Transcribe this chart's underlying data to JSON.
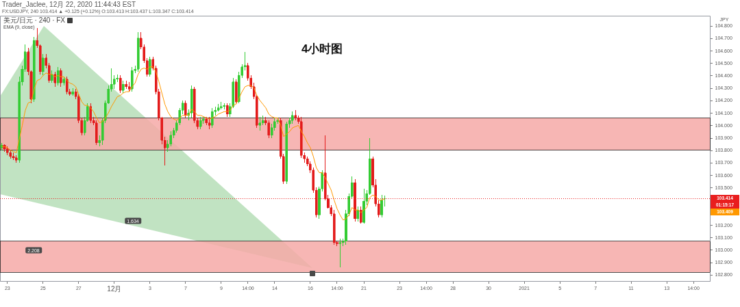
{
  "chart_data": {
    "type": "candlestick",
    "title": "4小时图",
    "ylabel": "JPY",
    "categories": [
      null,
      null,
      "23",
      null,
      null,
      null,
      null,
      null,
      null,
      null,
      null,
      null,
      null,
      null,
      "25",
      null,
      null,
      null,
      null,
      null,
      null,
      null,
      null,
      null,
      null,
      null,
      "27",
      null,
      null,
      null,
      null,
      null,
      null,
      null,
      null,
      null,
      null,
      null,
      "12月",
      null,
      null,
      null,
      null,
      null,
      null,
      null,
      null,
      null,
      null,
      null,
      "3",
      null,
      null,
      null,
      null,
      null,
      null,
      null,
      null,
      null,
      null,
      null,
      "7",
      null,
      null,
      null,
      null,
      null,
      null,
      null,
      null,
      null,
      null,
      null,
      "9",
      null,
      null,
      null,
      null,
      null,
      null,
      null,
      null,
      "14:00",
      null,
      null,
      null,
      null,
      null,
      null,
      null,
      null,
      "14",
      null,
      null,
      null,
      null,
      null,
      null,
      null,
      null,
      null,
      null,
      null,
      "16",
      null,
      null,
      null,
      null,
      null,
      null,
      null,
      null,
      "14:00",
      null,
      null,
      null,
      null,
      null,
      null,
      null,
      null,
      "21",
      null,
      null,
      null,
      null,
      null,
      null,
      null,
      null,
      null,
      null,
      null,
      "23",
      null,
      null,
      null,
      null,
      null,
      null,
      null,
      null,
      "14:00",
      null,
      null,
      null,
      null,
      null,
      null,
      null,
      null,
      "28",
      null,
      null,
      null,
      null,
      null,
      null,
      null,
      null,
      null,
      null,
      null,
      "30",
      null,
      null,
      null,
      null,
      null,
      null,
      null,
      null,
      null,
      null,
      null,
      "2021",
      null,
      null,
      null,
      null,
      null,
      null,
      null,
      null,
      null,
      null,
      null,
      "5",
      null,
      null,
      null,
      null,
      null,
      null,
      null,
      null,
      null,
      null,
      null,
      "7",
      null,
      null,
      null,
      null,
      null,
      null,
      null,
      null,
      null,
      null,
      null,
      "11",
      null,
      null,
      null,
      null,
      null,
      null,
      null,
      null,
      null,
      null,
      null,
      "13",
      null,
      null,
      null,
      null,
      null,
      null,
      null,
      null,
      "14:00",
      null,
      null,
      null,
      null,
      null
    ],
    "ohlc": [
      [
        103.82,
        103.86,
        103.8,
        103.84
      ],
      [
        103.84,
        103.85,
        103.79,
        103.81
      ],
      [
        103.81,
        103.83,
        103.76,
        103.78
      ],
      [
        103.78,
        103.8,
        103.73,
        103.75
      ],
      [
        103.75,
        103.78,
        103.72,
        103.74
      ],
      [
        103.74,
        103.76,
        103.7,
        103.72
      ],
      [
        103.72,
        104.39,
        103.7,
        104.35
      ],
      [
        104.35,
        104.48,
        104.32,
        104.45
      ],
      [
        104.45,
        104.65,
        104.43,
        104.59
      ],
      [
        104.59,
        104.62,
        104.4,
        104.43
      ],
      [
        104.43,
        104.44,
        104.18,
        104.21
      ],
      [
        104.21,
        104.71,
        104.19,
        104.68
      ],
      [
        104.68,
        104.78,
        104.62,
        104.64
      ],
      [
        104.64,
        104.65,
        104.41,
        104.43
      ],
      [
        104.43,
        104.57,
        104.4,
        104.54
      ],
      [
        104.54,
        104.57,
        104.46,
        104.48
      ],
      [
        104.48,
        104.5,
        104.34,
        104.36
      ],
      [
        104.36,
        104.44,
        104.34,
        104.41
      ],
      [
        104.41,
        104.43,
        104.31,
        104.34
      ],
      [
        104.34,
        104.47,
        104.32,
        104.44
      ],
      [
        104.44,
        104.46,
        104.31,
        104.34
      ],
      [
        104.34,
        104.39,
        104.32,
        104.37
      ],
      [
        104.37,
        104.39,
        104.25,
        104.27
      ],
      [
        104.27,
        104.29,
        104.24,
        104.25
      ],
      [
        104.25,
        104.3,
        104.24,
        104.27
      ],
      [
        104.27,
        104.29,
        104.21,
        104.23
      ],
      [
        104.23,
        104.25,
        104.02,
        104.04
      ],
      [
        104.04,
        104.06,
        103.92,
        103.94
      ],
      [
        103.94,
        104.07,
        103.92,
        104.04
      ],
      [
        104.04,
        104.18,
        104.03,
        104.15
      ],
      [
        104.15,
        104.18,
        104.02,
        104.04
      ],
      [
        104.04,
        104.07,
        104.0,
        104.02
      ],
      [
        104.02,
        104.04,
        103.84,
        103.86
      ],
      [
        103.86,
        103.92,
        103.83,
        103.88
      ],
      [
        103.88,
        104.06,
        103.84,
        104.04
      ],
      [
        104.04,
        104.2,
        104.02,
        104.18
      ],
      [
        104.18,
        104.32,
        104.17,
        104.29
      ],
      [
        104.29,
        104.46,
        104.27,
        104.33
      ],
      [
        104.33,
        104.4,
        104.29,
        104.37
      ],
      [
        104.37,
        104.41,
        104.35,
        104.38
      ],
      [
        104.38,
        104.4,
        104.26,
        104.28
      ],
      [
        104.28,
        104.36,
        104.26,
        104.33
      ],
      [
        104.33,
        104.36,
        104.29,
        104.31
      ],
      [
        104.31,
        104.35,
        104.27,
        104.29
      ],
      [
        104.29,
        104.47,
        104.27,
        104.44
      ],
      [
        104.44,
        104.48,
        104.42,
        104.45
      ],
      [
        104.45,
        104.75,
        104.43,
        104.7
      ],
      [
        104.7,
        104.75,
        104.61,
        104.63
      ],
      [
        104.63,
        104.65,
        104.5,
        104.52
      ],
      [
        104.52,
        104.54,
        104.39,
        104.41
      ],
      [
        104.41,
        104.55,
        104.39,
        104.53
      ],
      [
        104.53,
        104.55,
        104.44,
        104.46
      ],
      [
        104.46,
        104.48,
        104.25,
        104.27
      ],
      [
        104.27,
        104.29,
        104.04,
        104.06
      ],
      [
        104.06,
        104.07,
        103.85,
        103.88
      ],
      [
        103.88,
        103.91,
        103.68,
        103.82
      ],
      [
        103.82,
        103.88,
        103.79,
        103.85
      ],
      [
        103.85,
        103.95,
        103.83,
        103.92
      ],
      [
        103.92,
        103.98,
        103.9,
        103.96
      ],
      [
        103.96,
        104.04,
        103.94,
        104.02
      ],
      [
        104.02,
        104.14,
        104.0,
        104.12
      ],
      [
        104.12,
        104.2,
        104.09,
        104.18
      ],
      [
        104.18,
        104.2,
        104.06,
        104.08
      ],
      [
        104.08,
        104.13,
        104.04,
        104.1
      ],
      [
        104.1,
        104.32,
        104.06,
        104.29
      ],
      [
        104.29,
        104.31,
        104.02,
        104.04
      ],
      [
        104.04,
        104.06,
        103.97,
        103.99
      ],
      [
        103.99,
        104.07,
        103.97,
        104.04
      ],
      [
        104.04,
        104.07,
        104.01,
        104.05
      ],
      [
        104.05,
        104.07,
        104.0,
        104.02
      ],
      [
        104.02,
        104.07,
        103.97,
        104.0
      ],
      [
        104.0,
        104.14,
        103.98,
        104.11
      ],
      [
        104.11,
        104.15,
        104.08,
        104.12
      ],
      [
        104.12,
        104.17,
        104.11,
        104.14
      ],
      [
        104.14,
        104.19,
        104.13,
        104.15
      ],
      [
        104.15,
        104.18,
        104.13,
        104.16
      ],
      [
        104.16,
        104.18,
        104.07,
        104.09
      ],
      [
        104.09,
        104.18,
        104.07,
        104.15
      ],
      [
        104.15,
        104.38,
        104.14,
        104.35
      ],
      [
        104.35,
        104.37,
        104.18,
        104.19
      ],
      [
        104.19,
        104.43,
        104.18,
        104.4
      ],
      [
        104.4,
        104.49,
        104.38,
        104.47
      ],
      [
        104.47,
        104.59,
        104.44,
        104.48
      ],
      [
        104.48,
        104.5,
        104.36,
        104.38
      ],
      [
        104.38,
        104.4,
        104.29,
        104.31
      ],
      [
        104.31,
        104.34,
        104.21,
        104.23
      ],
      [
        104.23,
        104.25,
        103.98,
        104.0
      ],
      [
        104.0,
        104.07,
        103.96,
        104.02
      ],
      [
        104.02,
        104.08,
        104.0,
        104.04
      ],
      [
        104.04,
        104.07,
        104.0,
        104.02
      ],
      [
        104.02,
        104.04,
        103.9,
        103.92
      ],
      [
        103.92,
        104.01,
        103.9,
        103.98
      ],
      [
        103.98,
        104.06,
        103.96,
        104.03
      ],
      [
        104.03,
        104.06,
        104.01,
        104.04
      ],
      [
        104.04,
        104.06,
        103.73,
        103.75
      ],
      [
        103.75,
        103.77,
        103.53,
        103.55
      ],
      [
        103.55,
        104.03,
        103.53,
        104.01
      ],
      [
        104.01,
        104.06,
        103.98,
        104.04
      ],
      [
        104.04,
        104.11,
        104.01,
        104.08
      ],
      [
        104.08,
        104.12,
        104.04,
        104.06
      ],
      [
        104.06,
        104.08,
        104.01,
        104.03
      ],
      [
        104.03,
        104.07,
        103.74,
        103.76
      ],
      [
        103.76,
        103.78,
        103.7,
        103.73
      ],
      [
        103.73,
        103.75,
        103.67,
        103.69
      ],
      [
        103.69,
        103.71,
        103.62,
        103.64
      ],
      [
        103.64,
        103.66,
        103.46,
        103.48
      ],
      [
        103.48,
        103.5,
        103.26,
        103.28
      ],
      [
        103.28,
        103.51,
        103.25,
        103.49
      ],
      [
        103.49,
        103.64,
        103.47,
        103.62
      ],
      [
        103.62,
        103.92,
        103.4,
        103.41
      ],
      [
        103.41,
        103.44,
        103.33,
        103.34
      ],
      [
        103.34,
        103.36,
        103.27,
        103.29
      ],
      [
        103.29,
        103.32,
        103.04,
        103.06
      ],
      [
        103.06,
        103.07,
        103.03,
        103.05
      ],
      [
        103.05,
        103.09,
        102.86,
        103.06
      ],
      [
        103.06,
        103.09,
        103.03,
        103.07
      ],
      [
        103.07,
        103.32,
        103.04,
        103.29
      ],
      [
        103.29,
        103.45,
        103.27,
        103.43
      ],
      [
        103.43,
        103.59,
        103.41,
        103.54
      ],
      [
        103.54,
        103.57,
        103.23,
        103.25
      ],
      [
        103.25,
        103.35,
        103.23,
        103.32
      ],
      [
        103.32,
        103.35,
        103.21,
        103.22
      ],
      [
        103.22,
        103.49,
        103.21,
        103.39
      ],
      [
        103.39,
        103.48,
        103.36,
        103.45
      ],
      [
        103.45,
        103.9,
        103.44,
        103.73
      ],
      [
        103.73,
        103.75,
        103.5,
        103.52
      ],
      [
        103.52,
        103.57,
        103.35,
        103.37
      ],
      [
        103.37,
        103.4,
        103.26,
        103.28
      ],
      [
        103.28,
        103.44,
        103.26,
        103.4
      ],
      [
        103.413,
        103.437,
        103.347,
        103.414
      ],
      null,
      null,
      null,
      null,
      null,
      null,
      null,
      null,
      null,
      null,
      null,
      null,
      null,
      null,
      null,
      null,
      null,
      null,
      null,
      null,
      null,
      null,
      null,
      null,
      null,
      null,
      null,
      null,
      null,
      null,
      null,
      null,
      null,
      null,
      null,
      null,
      null,
      null,
      null,
      null,
      null,
      null,
      null,
      null,
      null,
      null,
      null,
      null,
      null,
      null,
      null,
      null,
      null,
      null,
      null,
      null,
      null,
      null,
      null,
      null,
      null,
      null,
      null,
      null,
      null,
      null,
      null,
      null,
      null,
      null,
      null,
      null,
      null,
      null,
      null,
      null,
      null,
      null,
      null,
      null,
      null,
      null,
      null,
      null,
      null,
      null,
      null,
      null,
      null,
      null,
      null,
      null,
      null,
      null,
      null,
      null,
      null,
      null,
      null,
      null,
      null,
      null,
      null,
      null,
      null,
      null,
      null,
      null,
      null
    ],
    "colors": [
      "#33cc33",
      "#e31b1b",
      "#e31b1b",
      "#e31b1b",
      "#e31b1b",
      "#e31b1b",
      "#33cc33",
      "#33cc33",
      "#33cc33",
      "#e31b1b",
      "#e31b1b",
      "#33cc33",
      "#e31b1b",
      "#e31b1b",
      "#33cc33",
      "#e31b1b",
      "#e31b1b",
      "#33cc33",
      "#e31b1b",
      "#33cc33",
      "#e31b1b",
      "#33cc33",
      "#e31b1b",
      "#e31b1b",
      "#33cc33",
      "#e31b1b",
      "#e31b1b",
      "#e31b1b",
      "#33cc33",
      "#33cc33",
      "#e31b1b",
      "#e31b1b",
      "#e31b1b",
      "#33cc33",
      "#33cc33",
      "#33cc33",
      "#33cc33",
      "#33cc33",
      "#33cc33",
      "#33cc33",
      "#e31b1b",
      "#33cc33",
      "#e31b1b",
      "#e31b1b",
      "#33cc33",
      "#33cc33",
      "#33cc33",
      "#e31b1b",
      "#e31b1b",
      "#e31b1b",
      "#33cc33",
      "#e31b1b",
      "#e31b1b",
      "#e31b1b",
      "#e31b1b",
      "#e31b1b",
      "#33cc33",
      "#33cc33",
      "#33cc33",
      "#33cc33",
      "#33cc33",
      "#33cc33",
      "#e31b1b",
      "#33cc33",
      "#33cc33",
      "#e31b1b",
      "#e31b1b",
      "#33cc33",
      "#33cc33",
      "#e31b1b",
      "#e31b1b",
      "#33cc33",
      "#33cc33",
      "#33cc33",
      "#33cc33",
      "#33cc33",
      "#e31b1b",
      "#33cc33",
      "#33cc33",
      "#e31b1b",
      "#33cc33",
      "#33cc33",
      "#33cc33",
      "#e31b1b",
      "#e31b1b",
      "#e31b1b",
      "#e31b1b",
      "#33cc33",
      "#33cc33",
      "#e31b1b",
      "#e31b1b",
      "#33cc33",
      "#33cc33",
      "#33cc33",
      "#e31b1b",
      "#e31b1b",
      "#33cc33",
      "#33cc33",
      "#33cc33",
      "#e31b1b",
      "#e31b1b",
      "#e31b1b",
      "#e31b1b",
      "#e31b1b",
      "#e31b1b",
      "#e31b1b",
      "#e31b1b",
      "#33cc33",
      "#33cc33",
      "#e31b1b",
      "#e31b1b",
      "#e31b1b",
      "#e31b1b",
      "#e31b1b",
      "#33cc33",
      "#33cc33",
      "#33cc33",
      "#33cc33",
      "#33cc33",
      "#e31b1b",
      "#33cc33",
      "#e31b1b",
      "#33cc33",
      "#33cc33",
      "#33cc33",
      "#e31b1b",
      "#e31b1b",
      "#e31b1b",
      "#33cc33",
      "#33cc33",
      null,
      null,
      null,
      null,
      null,
      null,
      null,
      null,
      null,
      null,
      null,
      null,
      null,
      null,
      null,
      null,
      null,
      null,
      null,
      null,
      null,
      null,
      null,
      null,
      null,
      null,
      null,
      null,
      null,
      null,
      null,
      null,
      null,
      null,
      null,
      null,
      null,
      null,
      null,
      null,
      null,
      null,
      null,
      null,
      null,
      null,
      null,
      null,
      null,
      null,
      null,
      null,
      null,
      null,
      null,
      null,
      null,
      null,
      null,
      null,
      null,
      null,
      null,
      null,
      null,
      null,
      null,
      null,
      null,
      null,
      null,
      null,
      null,
      null,
      null,
      null,
      null,
      null,
      null,
      null,
      null,
      null,
      null,
      null,
      null,
      null,
      null,
      null,
      null,
      null,
      null,
      null,
      null,
      null,
      null,
      null,
      null,
      null,
      null,
      null,
      null,
      null,
      null,
      null,
      null,
      null,
      null,
      null,
      null
    ],
    "series": [
      {
        "type": "line",
        "color": "#ff9800",
        "values": [
          103.83,
          103.83,
          103.82,
          103.8,
          103.79,
          103.78,
          103.89,
          104.0,
          104.12,
          104.18,
          104.19,
          104.29,
          104.36,
          104.37,
          104.4,
          104.42,
          104.41,
          104.41,
          104.39,
          104.4,
          104.39,
          104.39,
          104.36,
          104.34,
          104.33,
          104.31,
          104.25,
          104.19,
          104.16,
          104.16,
          104.14,
          104.11,
          104.06,
          104.02,
          104.03,
          104.06,
          104.1,
          104.15,
          104.19,
          104.23,
          104.24,
          104.26,
          104.27,
          104.27,
          104.31,
          104.34,
          104.41,
          104.45,
          104.46,
          104.45,
          104.47,
          104.47,
          104.43,
          104.35,
          104.26,
          104.17,
          104.11,
          104.07,
          104.05,
          104.04,
          104.06,
          104.08,
          104.08,
          104.08,
          104.13,
          104.11,
          104.08,
          104.08,
          104.07,
          104.06,
          104.05,
          104.06,
          104.07,
          104.09,
          104.1,
          104.11,
          104.11,
          104.12,
          104.16,
          104.17,
          104.22,
          104.27,
          104.31,
          104.32,
          104.32,
          104.3,
          104.24,
          104.2,
          104.17,
          104.14,
          104.09,
          104.07,
          104.06,
          104.06,
          104.0,
          103.91,
          103.93,
          103.95,
          103.98,
          103.99,
          104.0,
          103.95,
          103.91,
          103.86,
          103.82,
          103.75,
          103.66,
          103.62,
          103.62,
          103.58,
          103.53,
          103.48,
          103.4,
          103.33,
          103.28,
          103.24,
          103.25,
          103.28,
          103.34,
          103.32,
          103.32,
          103.3,
          103.32,
          103.34,
          103.42,
          103.44,
          103.43,
          103.4,
          103.4,
          103.409,
          null,
          null,
          null,
          null,
          null,
          null,
          null,
          null,
          null,
          null,
          null,
          null,
          null,
          null,
          null,
          null,
          null,
          null,
          null,
          null,
          null,
          null,
          null,
          null,
          null,
          null,
          null,
          null,
          null,
          null,
          null,
          null,
          null,
          null,
          null,
          null,
          null,
          null,
          null,
          null,
          null,
          null,
          null,
          null,
          null,
          null,
          null,
          null,
          null,
          null,
          null,
          null,
          null,
          null,
          null,
          null,
          null,
          null,
          null,
          null,
          null,
          null,
          null,
          null,
          null,
          null,
          null,
          null,
          null,
          null,
          null,
          null,
          null,
          null,
          null,
          null,
          null,
          null,
          null,
          null,
          null,
          null,
          null,
          null,
          null,
          null,
          null,
          null,
          null,
          null,
          null,
          null,
          null,
          null,
          null,
          null,
          null,
          null,
          null,
          null,
          null,
          null,
          null,
          null,
          null,
          null,
          null,
          null,
          null
        ]
      }
    ],
    "ylim": [
      102.75,
      104.88
    ],
    "yticks": [
      {
        "value": 102.8,
        "label": "102.800"
      },
      {
        "value": 102.9,
        "label": "102.900"
      },
      {
        "value": 103,
        "label": "103.000"
      },
      {
        "value": 103.1,
        "label": "103.100"
      },
      {
        "value": 103.2,
        "label": "103.200"
      },
      {
        "value": 103.3,
        "label": null
      },
      {
        "value": 103.4,
        "label": null
      },
      {
        "value": 103.5,
        "label": "103.500"
      },
      {
        "value": 103.6,
        "label": "103.600"
      },
      {
        "value": 103.7,
        "label": "103.700"
      },
      {
        "value": 103.8,
        "label": "103.800"
      },
      {
        "value": 103.9,
        "label": "103.900"
      },
      {
        "value": 104,
        "label": "104.000"
      },
      {
        "value": 104.1,
        "label": "104.100"
      },
      {
        "value": 104.2,
        "label": "104.200"
      },
      {
        "value": 104.3,
        "label": "104.300"
      },
      {
        "value": 104.4,
        "label": "104.400"
      },
      {
        "value": 104.5,
        "label": "104.500"
      },
      {
        "value": 104.6,
        "label": "104.600"
      },
      {
        "value": 104.7,
        "label": "104.700"
      },
      {
        "value": 104.8,
        "label": "104.800"
      }
    ],
    "bands": [
      {
        "axis": "y",
        "from": 103.8,
        "to": 104.06,
        "color": "#f6a9a7"
      },
      {
        "axis": "y",
        "from": 102.82,
        "to": 103.07,
        "color": "#f6a9a7"
      }
    ],
    "ref_lines": [
      {
        "axis": "y",
        "value": 103.414,
        "label": "103.414",
        "color": "#e91e1e",
        "line_style": "dotted"
      }
    ],
    "annotations": [
      "Trader_Jaclee, 12月 22, 2020 11:44:43 EST",
      "FX:USDJPY, 240 103.414 ▲ +0.125 (+0.12%) O:103.413 H:103.437 L:103.347 C:103.414",
      "美元/日元 · 240 · FX",
      "EMA (9, close)",
      "1.634",
      "2.208",
      "01:15:17",
      "103.409"
    ]
  }
}
